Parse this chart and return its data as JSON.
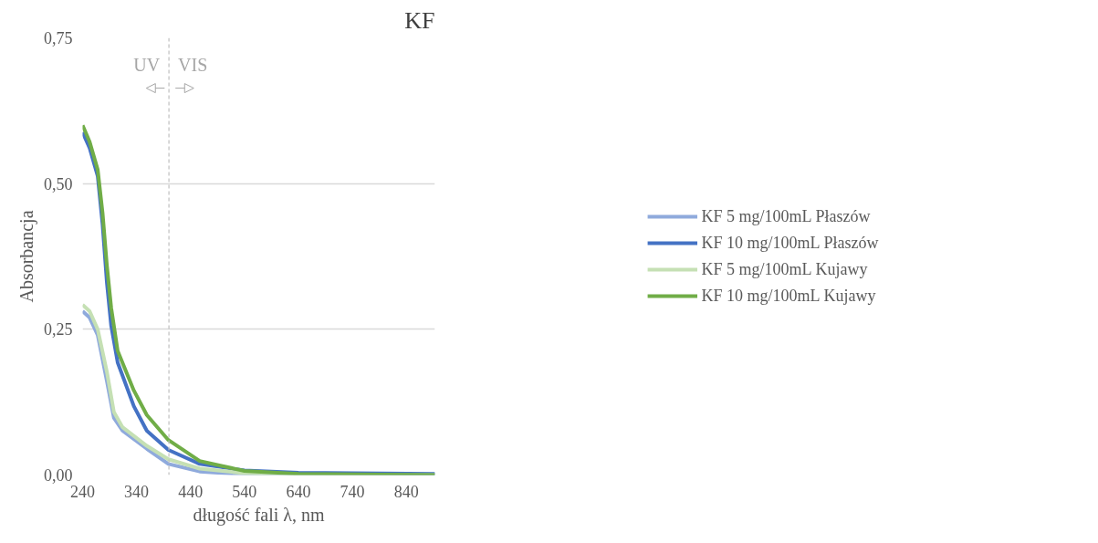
{
  "chart_data": {
    "type": "line",
    "title": "KF",
    "xlabel": "długość fali λ, nm",
    "ylabel": "Absorbancja",
    "xlim": [
      240,
      893
    ],
    "ylim": [
      0,
      0.75
    ],
    "xticks": [
      240,
      340,
      440,
      540,
      640,
      740,
      840
    ],
    "yticks": [
      {
        "value": 0,
        "label": "0,00"
      },
      {
        "value": 0.25,
        "label": "0,25"
      },
      {
        "value": 0.5,
        "label": "0,50"
      },
      {
        "value": 0.75,
        "label": "0,75"
      }
    ],
    "grid": "y",
    "legend": "right",
    "line_style": "solid",
    "marker": "none",
    "ref_lines": [
      {
        "axis": "x",
        "value": 400,
        "label": null,
        "color": "#bfbfbf",
        "line_style": "dashed"
      }
    ],
    "annotations": [
      "UV",
      "VIS"
    ],
    "series": [
      {
        "name": "KF 5 mg/100mL Płaszów",
        "color": "#8faadc",
        "x": [
          240,
          253,
          268,
          285,
          298,
          314,
          359,
          399,
          457,
          540,
          640,
          740,
          893
        ],
        "values": [
          0.281,
          0.27,
          0.24,
          0.161,
          0.098,
          0.076,
          0.045,
          0.019,
          0.006,
          0.001,
          0,
          0,
          0
        ]
      },
      {
        "name": "KF 10 mg/100mL Płaszów",
        "color": "#4472c4",
        "x": [
          240,
          253,
          268,
          277,
          285,
          293,
          305,
          335,
          359,
          399,
          457,
          540,
          640,
          740,
          893
        ],
        "values": [
          0.588,
          0.561,
          0.513,
          0.43,
          0.33,
          0.256,
          0.193,
          0.118,
          0.076,
          0.043,
          0.019,
          0.008,
          0.004,
          0.003,
          0.002
        ]
      },
      {
        "name": "KF 5 mg/100mL Kujawy",
        "color": "#c5e0b4",
        "x": [
          240,
          253,
          268,
          285,
          298,
          314,
          359,
          399,
          457,
          540,
          640,
          740,
          893
        ],
        "values": [
          0.292,
          0.281,
          0.25,
          0.177,
          0.108,
          0.082,
          0.05,
          0.027,
          0.011,
          0.003,
          0,
          0,
          0
        ]
      },
      {
        "name": "KF 10 mg/100mL Kujawy",
        "color": "#70ad47",
        "x": [
          240,
          253,
          268,
          277,
          285,
          293,
          305,
          335,
          359,
          399,
          457,
          540,
          640,
          740,
          893
        ],
        "values": [
          0.6,
          0.572,
          0.524,
          0.45,
          0.36,
          0.287,
          0.213,
          0.145,
          0.103,
          0.06,
          0.024,
          0.007,
          0.002,
          0.001,
          0
        ]
      }
    ]
  }
}
